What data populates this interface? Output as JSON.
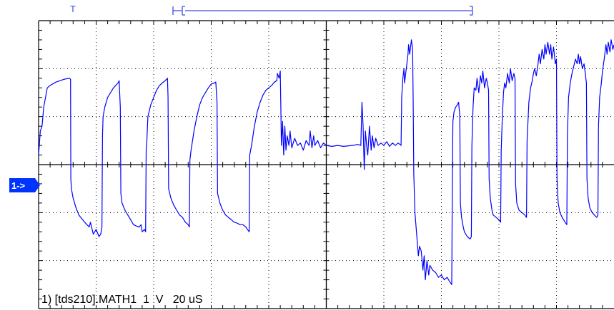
{
  "scope": {
    "trigger_marker": "T",
    "channel_marker": "1->",
    "status": "1) [tds210].MATH1  1  V   20 uS",
    "trace_color": "#0000ff",
    "grid_color": "#000000",
    "marker_color": "#3f4ce0",
    "channel_marker_bg": "#0033ff",
    "grid": {
      "h_divisions": 10,
      "v_divisions": 6,
      "minor_per_division": 5
    }
  },
  "chart_data": {
    "type": "line",
    "x_unit": "div",
    "y_unit": "div",
    "xlim": [
      0,
      10
    ],
    "ylim": [
      -3,
      3
    ],
    "grid": true,
    "series": [
      {
        "values_xy": [
          [
            0.0,
            0.2
          ],
          [
            0.03,
            0.7
          ],
          [
            0.06,
            0.8
          ],
          [
            0.09,
            1.2
          ],
          [
            0.12,
            1.4
          ],
          [
            0.15,
            1.6
          ],
          [
            0.2,
            1.65
          ],
          [
            0.3,
            1.72
          ],
          [
            0.45,
            1.78
          ],
          [
            0.53,
            1.8
          ],
          [
            0.555,
            1.78
          ],
          [
            0.56,
            -0.3
          ],
          [
            0.57,
            -0.5
          ],
          [
            0.6,
            -0.7
          ],
          [
            0.65,
            -0.9
          ],
          [
            0.7,
            -1.05
          ],
          [
            0.8,
            -1.2
          ],
          [
            0.88,
            -1.3
          ],
          [
            0.9,
            -1.2
          ],
          [
            0.95,
            -1.45
          ],
          [
            1.0,
            -1.35
          ],
          [
            1.05,
            -1.5
          ],
          [
            1.08,
            -1.45
          ],
          [
            1.1,
            -1.3
          ],
          [
            1.11,
            0.6
          ],
          [
            1.12,
            1.0
          ],
          [
            1.15,
            1.2
          ],
          [
            1.2,
            1.4
          ],
          [
            1.25,
            1.5
          ],
          [
            1.3,
            1.6
          ],
          [
            1.38,
            1.7
          ],
          [
            1.4,
            1.75
          ],
          [
            1.42,
            1.2
          ],
          [
            1.43,
            -0.6
          ],
          [
            1.45,
            -0.8
          ],
          [
            1.5,
            -0.95
          ],
          [
            1.55,
            -1.05
          ],
          [
            1.6,
            -1.15
          ],
          [
            1.65,
            -1.25
          ],
          [
            1.7,
            -1.28
          ],
          [
            1.75,
            -1.3
          ],
          [
            1.78,
            -1.25
          ],
          [
            1.8,
            -1.4
          ],
          [
            1.84,
            -1.35
          ],
          [
            1.86,
            -1.4
          ],
          [
            1.87,
            0.3
          ],
          [
            1.88,
            0.45
          ],
          [
            1.9,
            1.0
          ],
          [
            1.95,
            1.25
          ],
          [
            2.0,
            1.4
          ],
          [
            2.05,
            1.55
          ],
          [
            2.1,
            1.65
          ],
          [
            2.15,
            1.7
          ],
          [
            2.2,
            1.75
          ],
          [
            2.24,
            1.8
          ],
          [
            2.25,
            1.4
          ],
          [
            2.26,
            -0.5
          ],
          [
            2.3,
            -0.7
          ],
          [
            2.35,
            -0.85
          ],
          [
            2.4,
            -0.95
          ],
          [
            2.45,
            -1.05
          ],
          [
            2.5,
            -1.1
          ],
          [
            2.55,
            -1.2
          ],
          [
            2.6,
            -1.25
          ],
          [
            2.62,
            -1.3
          ],
          [
            2.63,
            0.1
          ],
          [
            2.65,
            0.3
          ],
          [
            2.7,
            0.7
          ],
          [
            2.75,
            1.0
          ],
          [
            2.8,
            1.25
          ],
          [
            2.85,
            1.4
          ],
          [
            2.9,
            1.5
          ],
          [
            2.95,
            1.6
          ],
          [
            3.0,
            1.68
          ],
          [
            3.05,
            1.7
          ],
          [
            3.08,
            1.72
          ],
          [
            3.1,
            1.3
          ],
          [
            3.11,
            -0.6
          ],
          [
            3.15,
            -0.8
          ],
          [
            3.2,
            -0.95
          ],
          [
            3.25,
            -1.05
          ],
          [
            3.3,
            -1.1
          ],
          [
            3.35,
            -1.15
          ],
          [
            3.4,
            -1.2
          ],
          [
            3.45,
            -1.22
          ],
          [
            3.5,
            -1.25
          ],
          [
            3.55,
            -1.25
          ],
          [
            3.6,
            -1.3
          ],
          [
            3.66,
            -1.4
          ],
          [
            3.67,
            0.2
          ],
          [
            3.7,
            0.4
          ],
          [
            3.75,
            0.8
          ],
          [
            3.8,
            1.1
          ],
          [
            3.85,
            1.3
          ],
          [
            3.9,
            1.45
          ],
          [
            3.95,
            1.55
          ],
          [
            4.0,
            1.6
          ],
          [
            4.05,
            1.65
          ],
          [
            4.1,
            1.72
          ],
          [
            4.14,
            1.75
          ],
          [
            4.15,
            1.9
          ],
          [
            4.18,
            1.8
          ],
          [
            4.2,
            1.95
          ],
          [
            4.21,
            1.2
          ],
          [
            4.22,
            0.4
          ],
          [
            4.24,
            0.9
          ],
          [
            4.26,
            0.2
          ],
          [
            4.28,
            0.8
          ],
          [
            4.3,
            0.3
          ],
          [
            4.32,
            0.6
          ],
          [
            4.35,
            0.4
          ],
          [
            4.37,
            0.7
          ],
          [
            4.4,
            0.35
          ],
          [
            4.45,
            0.55
          ],
          [
            4.5,
            0.4
          ],
          [
            4.55,
            0.45
          ],
          [
            4.6,
            0.3
          ],
          [
            4.65,
            0.5
          ],
          [
            4.7,
            0.4
          ],
          [
            4.72,
            0.7
          ],
          [
            4.75,
            0.35
          ],
          [
            4.78,
            0.6
          ],
          [
            4.8,
            0.4
          ],
          [
            4.85,
            0.5
          ],
          [
            4.9,
            0.35
          ],
          [
            4.95,
            0.45
          ],
          [
            5.0,
            0.4
          ],
          [
            5.1,
            0.38
          ],
          [
            5.2,
            0.4
          ],
          [
            5.3,
            0.38
          ],
          [
            5.45,
            0.4
          ],
          [
            5.55,
            0.42
          ],
          [
            5.6,
            0.4
          ],
          [
            5.62,
            1.3
          ],
          [
            5.64,
            0.8
          ],
          [
            5.66,
            -0.1
          ],
          [
            5.68,
            0.7
          ],
          [
            5.7,
            0.4
          ],
          [
            5.72,
            0.2
          ],
          [
            5.75,
            0.8
          ],
          [
            5.78,
            0.3
          ],
          [
            5.8,
            0.6
          ],
          [
            5.83,
            0.35
          ],
          [
            5.86,
            0.55
          ],
          [
            5.9,
            0.4
          ],
          [
            5.95,
            0.45
          ],
          [
            6.0,
            0.4
          ],
          [
            6.05,
            0.48
          ],
          [
            6.1,
            0.38
          ],
          [
            6.15,
            0.45
          ],
          [
            6.2,
            0.4
          ],
          [
            6.25,
            0.45
          ],
          [
            6.3,
            0.4
          ],
          [
            6.31,
            1.4
          ],
          [
            6.33,
            1.8
          ],
          [
            6.35,
            2.0
          ],
          [
            6.36,
            1.7
          ],
          [
            6.38,
            1.9
          ],
          [
            6.4,
            2.1
          ],
          [
            6.42,
            2.3
          ],
          [
            6.43,
            2.5
          ],
          [
            6.45,
            2.3
          ],
          [
            6.48,
            2.6
          ],
          [
            6.5,
            2.4
          ],
          [
            6.51,
            1.2
          ],
          [
            6.52,
            -0.2
          ],
          [
            6.54,
            -1.0
          ],
          [
            6.56,
            -1.3
          ],
          [
            6.58,
            -1.6
          ],
          [
            6.6,
            -1.9
          ],
          [
            6.62,
            -1.7
          ],
          [
            6.65,
            -1.8
          ],
          [
            6.68,
            -2.2
          ],
          [
            6.7,
            -1.9
          ],
          [
            6.72,
            -2.4
          ],
          [
            6.75,
            -2.0
          ],
          [
            6.78,
            -2.3
          ],
          [
            6.8,
            -2.1
          ],
          [
            6.85,
            -2.2
          ],
          [
            6.9,
            -2.25
          ],
          [
            6.95,
            -2.35
          ],
          [
            7.0,
            -2.3
          ],
          [
            7.05,
            -2.4
          ],
          [
            7.1,
            -2.35
          ],
          [
            7.15,
            -2.45
          ],
          [
            7.18,
            -2.5
          ],
          [
            7.19,
            -0.5
          ],
          [
            7.2,
            0.9
          ],
          [
            7.22,
            1.1
          ],
          [
            7.25,
            1.2
          ],
          [
            7.28,
            1.25
          ],
          [
            7.3,
            1.3
          ],
          [
            7.32,
            1.0
          ],
          [
            7.33,
            -0.8
          ],
          [
            7.35,
            -1.1
          ],
          [
            7.38,
            -1.3
          ],
          [
            7.4,
            -1.4
          ],
          [
            7.45,
            -1.5
          ],
          [
            7.5,
            -1.55
          ],
          [
            7.52,
            -1.5
          ],
          [
            7.53,
            0.4
          ],
          [
            7.55,
            1.2
          ],
          [
            7.57,
            1.6
          ],
          [
            7.6,
            1.55
          ],
          [
            7.62,
            1.8
          ],
          [
            7.65,
            1.5
          ],
          [
            7.68,
            1.85
          ],
          [
            7.7,
            1.7
          ],
          [
            7.72,
            1.95
          ],
          [
            7.75,
            1.6
          ],
          [
            7.78,
            1.8
          ],
          [
            7.8,
            1.7
          ],
          [
            7.82,
            1.55
          ],
          [
            7.83,
            -0.3
          ],
          [
            7.85,
            -0.7
          ],
          [
            7.88,
            -0.95
          ],
          [
            7.9,
            -1.05
          ],
          [
            7.95,
            -1.1
          ],
          [
            8.0,
            -1.15
          ],
          [
            8.03,
            -1.2
          ],
          [
            8.04,
            0.3
          ],
          [
            8.06,
            1.0
          ],
          [
            8.08,
            1.5
          ],
          [
            8.1,
            1.7
          ],
          [
            8.12,
            1.6
          ],
          [
            8.15,
            1.9
          ],
          [
            8.18,
            1.7
          ],
          [
            8.2,
            2.0
          ],
          [
            8.23,
            1.75
          ],
          [
            8.26,
            1.9
          ],
          [
            8.28,
            1.8
          ],
          [
            8.29,
            -0.4
          ],
          [
            8.31,
            -0.8
          ],
          [
            8.35,
            -0.95
          ],
          [
            8.4,
            -1.0
          ],
          [
            8.45,
            -1.05
          ],
          [
            8.48,
            -1.1
          ],
          [
            8.49,
            0.5
          ],
          [
            8.52,
            1.3
          ],
          [
            8.55,
            1.6
          ],
          [
            8.58,
            1.75
          ],
          [
            8.6,
            1.9
          ],
          [
            8.62,
            2.0
          ],
          [
            8.65,
            1.85
          ],
          [
            8.68,
            2.1
          ],
          [
            8.7,
            2.3
          ],
          [
            8.72,
            2.1
          ],
          [
            8.75,
            2.4
          ],
          [
            8.78,
            2.2
          ],
          [
            8.8,
            2.5
          ],
          [
            8.82,
            2.3
          ],
          [
            8.85,
            2.55
          ],
          [
            8.88,
            2.3
          ],
          [
            8.9,
            2.5
          ],
          [
            8.92,
            2.2
          ],
          [
            8.95,
            2.45
          ],
          [
            8.98,
            2.1
          ],
          [
            9.0,
            2.2
          ],
          [
            9.01,
            -0.3
          ],
          [
            9.03,
            -0.8
          ],
          [
            9.06,
            -1.0
          ],
          [
            9.1,
            -1.1
          ],
          [
            9.15,
            -1.2
          ],
          [
            9.18,
            -1.25
          ],
          [
            9.19,
            0.6
          ],
          [
            9.21,
            1.4
          ],
          [
            9.24,
            1.7
          ],
          [
            9.27,
            1.9
          ],
          [
            9.3,
            2.05
          ],
          [
            9.33,
            2.2
          ],
          [
            9.36,
            2.1
          ],
          [
            9.38,
            2.3
          ],
          [
            9.4,
            2.1
          ],
          [
            9.42,
            2.25
          ],
          [
            9.45,
            2.0
          ],
          [
            9.48,
            2.1
          ],
          [
            9.5,
            1.9
          ],
          [
            9.52,
            1.7
          ],
          [
            9.53,
            -0.3
          ],
          [
            9.55,
            -0.7
          ],
          [
            9.58,
            -0.9
          ],
          [
            9.62,
            -1.0
          ],
          [
            9.66,
            -1.05
          ],
          [
            9.7,
            -1.1
          ],
          [
            9.72,
            -1.05
          ],
          [
            9.73,
            0.8
          ],
          [
            9.75,
            1.4
          ],
          [
            9.78,
            1.7
          ],
          [
            9.8,
            1.95
          ],
          [
            9.83,
            2.2
          ],
          [
            9.86,
            2.5
          ],
          [
            9.88,
            2.3
          ],
          [
            9.9,
            2.55
          ],
          [
            9.93,
            2.35
          ],
          [
            9.95,
            2.6
          ],
          [
            9.98,
            2.4
          ],
          [
            10.0,
            2.5
          ]
        ]
      }
    ]
  }
}
